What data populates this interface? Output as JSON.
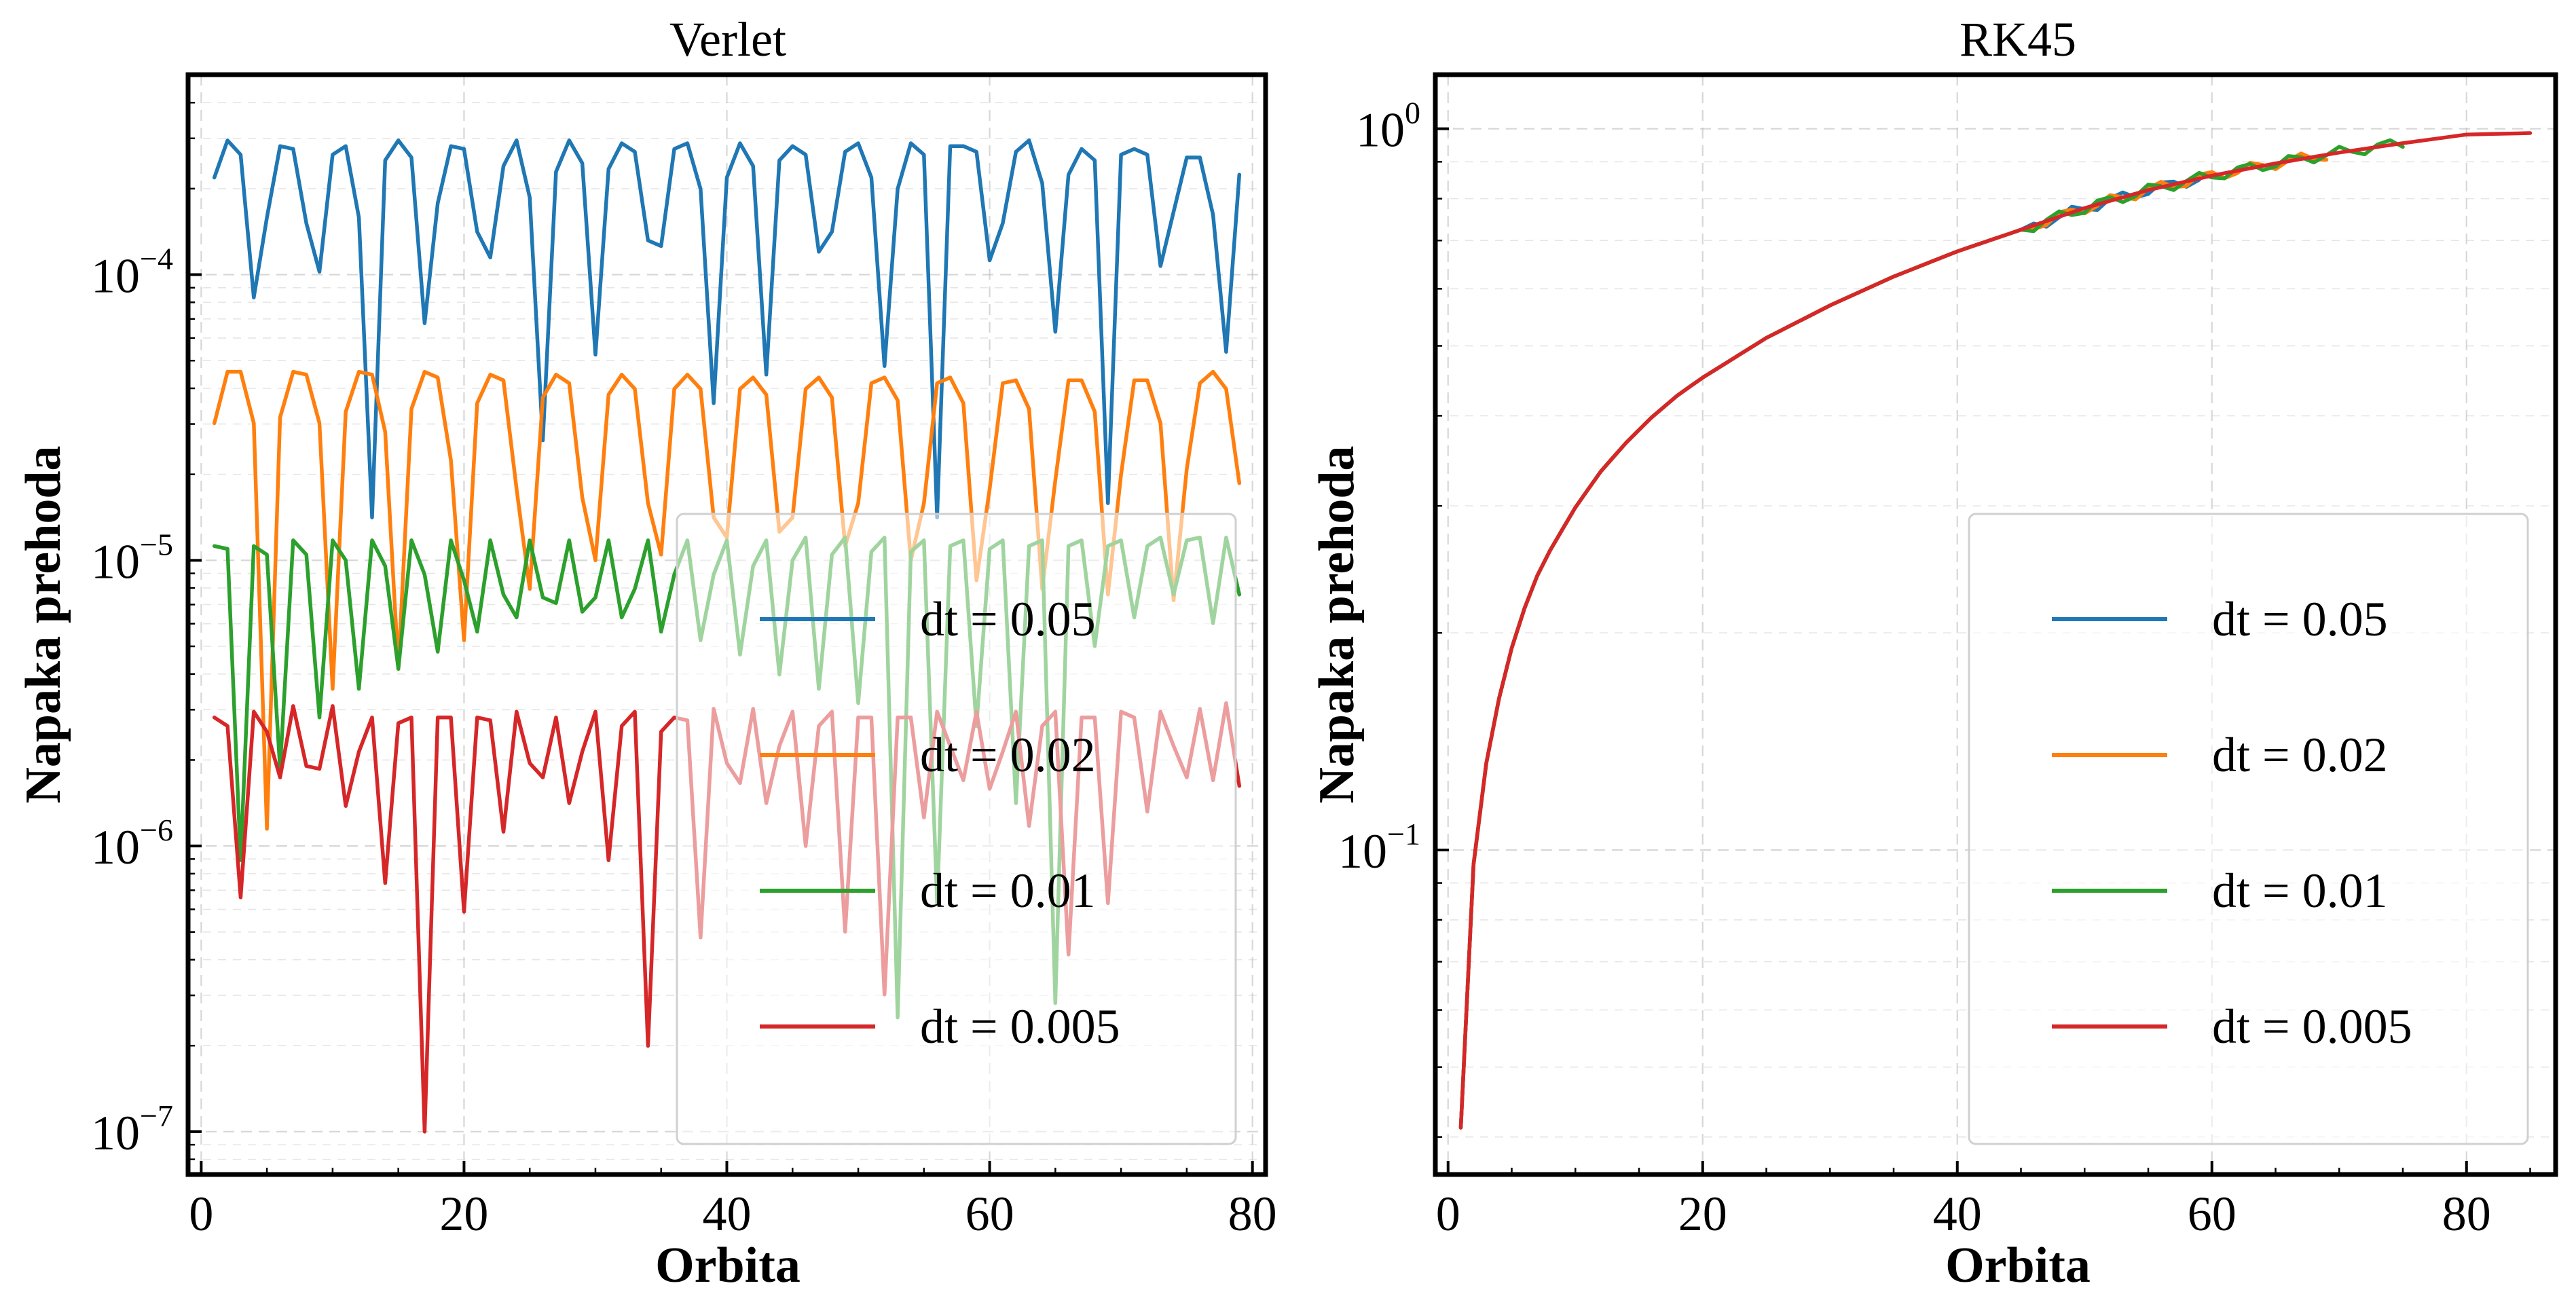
{
  "chart_data": [
    {
      "type": "line",
      "title": "Verlet",
      "xlabel": "Orbita",
      "ylabel": "Napaka prehoda",
      "xlim": [
        -1,
        81
      ],
      "ylim_log10": [
        -7.15,
        -3.3
      ],
      "yscale": "log",
      "grid": true,
      "legend": "lower-right",
      "x_ticks": [
        0,
        20,
        40,
        60,
        80
      ],
      "y_ticks": [
        {
          "base": "10",
          "exp": "−7",
          "log": -7
        },
        {
          "base": "10",
          "exp": "−6",
          "log": -6
        },
        {
          "base": "10",
          "exp": "−5",
          "log": -5
        },
        {
          "base": "10",
          "exp": "−4",
          "log": -4
        }
      ],
      "series": [
        {
          "name": "dt = 0.05",
          "color": "#1f77b4",
          "x_start": 1,
          "log10_values": [
            -3.66,
            -3.53,
            -3.58,
            -4.08,
            -3.8,
            -3.55,
            -3.56,
            -3.82,
            -3.99,
            -3.58,
            -3.55,
            -3.8,
            -4.85,
            -3.6,
            -3.53,
            -3.59,
            -4.17,
            -3.75,
            -3.55,
            -3.56,
            -3.85,
            -3.94,
            -3.62,
            -3.53,
            -3.73,
            -4.58,
            -3.64,
            -3.53,
            -3.61,
            -4.28,
            -3.63,
            -3.54,
            -3.57,
            -3.88,
            -3.9,
            -3.56,
            -3.54,
            -3.7,
            -4.45,
            -3.66,
            -3.54,
            -3.62,
            -4.35,
            -3.6,
            -3.55,
            -3.58,
            -3.92,
            -3.85,
            -3.57,
            -3.54,
            -3.66,
            -4.32,
            -3.7,
            -3.54,
            -3.58,
            -4.85,
            -3.55,
            -3.55,
            -3.57,
            -3.95,
            -3.82,
            -3.57,
            -3.53,
            -3.68,
            -4.2,
            -3.65,
            -3.56,
            -3.6,
            -4.8,
            -3.58,
            -3.56,
            -3.58,
            -3.97,
            -3.78,
            -3.59,
            -3.59,
            -3.79,
            -4.27,
            -3.65
          ]
        },
        {
          "name": "dt = 0.02",
          "color": "#ff7f0e",
          "x_start": 1,
          "log10_values": [
            -4.52,
            -4.34,
            -4.34,
            -4.52,
            -5.94,
            -4.5,
            -4.34,
            -4.35,
            -4.52,
            -5.45,
            -4.48,
            -4.34,
            -4.35,
            -4.55,
            -5.38,
            -4.47,
            -4.34,
            -4.36,
            -4.65,
            -5.28,
            -4.45,
            -4.35,
            -4.37,
            -4.75,
            -5.1,
            -4.43,
            -4.35,
            -4.38,
            -4.78,
            -5.0,
            -4.42,
            -4.35,
            -4.4,
            -4.8,
            -4.98,
            -4.4,
            -4.35,
            -4.4,
            -4.85,
            -4.92,
            -4.4,
            -4.36,
            -4.42,
            -4.9,
            -4.85,
            -4.4,
            -4.36,
            -4.43,
            -4.95,
            -4.8,
            -4.38,
            -4.36,
            -4.44,
            -5.0,
            -4.8,
            -4.38,
            -4.36,
            -4.45,
            -5.07,
            -4.75,
            -4.38,
            -4.37,
            -4.47,
            -5.1,
            -4.72,
            -4.37,
            -4.37,
            -4.48,
            -5.12,
            -4.7,
            -4.37,
            -4.37,
            -4.52,
            -5.14,
            -4.68,
            -4.38,
            -4.34,
            -4.4,
            -4.73
          ]
        },
        {
          "name": "dt = 0.01",
          "color": "#2ca02c",
          "x_start": 1,
          "log10_values": [
            -4.95,
            -4.96,
            -6.05,
            -4.95,
            -4.98,
            -5.73,
            -4.93,
            -4.98,
            -5.55,
            -4.93,
            -5.0,
            -5.45,
            -4.93,
            -5.02,
            -5.38,
            -4.93,
            -5.05,
            -5.32,
            -4.93,
            -5.07,
            -5.25,
            -4.93,
            -5.12,
            -5.2,
            -4.93,
            -5.13,
            -5.15,
            -4.93,
            -5.18,
            -5.13,
            -4.93,
            -5.2,
            -5.1,
            -4.93,
            -5.25,
            -5.05,
            -4.93,
            -5.28,
            -5.05,
            -4.93,
            -5.33,
            -5.02,
            -4.93,
            -5.4,
            -5.0,
            -4.92,
            -5.45,
            -4.98,
            -4.92,
            -5.5,
            -4.97,
            -4.92,
            -6.6,
            -4.97,
            -4.93,
            -6.2,
            -4.95,
            -4.93,
            -5.58,
            -4.96,
            -4.93,
            -5.85,
            -4.95,
            -4.93,
            -6.55,
            -4.95,
            -4.93,
            -5.3,
            -4.95,
            -4.93,
            -5.2,
            -4.95,
            -4.92,
            -5.12,
            -4.93,
            -4.92,
            -5.22,
            -4.92,
            -5.12
          ]
        },
        {
          "name": "dt = 0.005",
          "color": "#d62728",
          "x_start": 1,
          "log10_values": [
            -5.55,
            -5.58,
            -6.18,
            -5.53,
            -5.6,
            -5.76,
            -5.51,
            -5.72,
            -5.73,
            -5.51,
            -5.86,
            -5.67,
            -5.55,
            -6.13,
            -5.57,
            -5.55,
            -7.0,
            -5.55,
            -5.55,
            -6.23,
            -5.55,
            -5.56,
            -5.95,
            -5.53,
            -5.71,
            -5.76,
            -5.55,
            -5.85,
            -5.67,
            -5.53,
            -6.05,
            -5.58,
            -5.53,
            -6.7,
            -5.6,
            -5.55,
            -5.56,
            -6.32,
            -5.52,
            -5.71,
            -5.78,
            -5.52,
            -5.85,
            -5.65,
            -5.53,
            -6.0,
            -5.58,
            -5.53,
            -6.3,
            -5.55,
            -5.55,
            -6.52,
            -5.55,
            -5.55,
            -5.9,
            -5.53,
            -5.65,
            -5.77,
            -5.53,
            -5.8,
            -5.67,
            -5.53,
            -5.93,
            -5.58,
            -5.53,
            -6.38,
            -5.55,
            -5.55,
            -6.2,
            -5.53,
            -5.55,
            -5.88,
            -5.53,
            -5.65,
            -5.76,
            -5.52,
            -5.77,
            -5.5,
            -5.79
          ]
        }
      ]
    },
    {
      "type": "line",
      "title": "RK45",
      "xlabel": "Orbita",
      "ylabel": "Napaka prehoda",
      "xlim": [
        -1,
        87
      ],
      "ylim_log10": [
        -1.45,
        0.075
      ],
      "yscale": "log",
      "grid": true,
      "legend": "lower-right",
      "x_ticks": [
        0,
        20,
        40,
        60,
        80
      ],
      "y_ticks": [
        {
          "base": "10",
          "exp": "−1",
          "log": -1
        },
        {
          "base": "10",
          "exp": "0",
          "log": 0
        }
      ],
      "series": [
        {
          "name": "dt = 0.05",
          "color": "#1f77b4",
          "x_start": 1,
          "x_end": 59
        },
        {
          "name": "dt = 0.02",
          "color": "#ff7f0e",
          "x_start": 1,
          "x_end": 69
        },
        {
          "name": "dt = 0.01",
          "color": "#2ca02c",
          "x_start": 1,
          "x_end": 75
        },
        {
          "name": "dt = 0.005",
          "color": "#d62728",
          "x_start": 1,
          "x_end": 85
        }
      ],
      "curve_log10_samples": {
        "x": [
          1,
          2,
          3,
          4,
          5,
          6,
          7,
          8,
          10,
          12,
          14,
          16,
          18,
          20,
          25,
          30,
          35,
          40,
          45,
          50,
          55,
          60,
          65,
          70,
          75,
          80,
          85
        ],
        "y": [
          -1.385,
          -1.02,
          -0.88,
          -0.79,
          -0.72,
          -0.665,
          -0.62,
          -0.585,
          -0.525,
          -0.475,
          -0.435,
          -0.4,
          -0.37,
          -0.345,
          -0.29,
          -0.245,
          -0.205,
          -0.17,
          -0.14,
          -0.11,
          -0.085,
          -0.065,
          -0.048,
          -0.033,
          -0.02,
          -0.008,
          -0.006
        ]
      }
    }
  ]
}
